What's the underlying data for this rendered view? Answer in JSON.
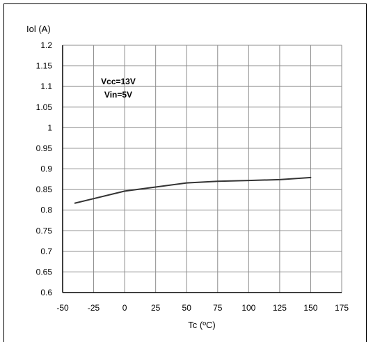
{
  "chart_data": {
    "type": "line",
    "ylabel": "Iol (A)",
    "xlabel": "Tc (ºC)",
    "xlim": [
      -50,
      175
    ],
    "ylim": [
      0.6,
      1.2
    ],
    "x_ticks": [
      "-50",
      "-25",
      "0",
      "25",
      "50",
      "75",
      "100",
      "125",
      "150",
      "175"
    ],
    "y_ticks": [
      "1.2",
      "1.15",
      "1.1",
      "1.05",
      "1",
      "0.95",
      "0.9",
      "0.85",
      "0.8",
      "0.75",
      "0.7",
      "0.65",
      "0.6"
    ],
    "grid": true,
    "annotations": [
      "Vcc=13V",
      "Vin=5V"
    ],
    "series": [
      {
        "x": [
          -40,
          0,
          50,
          75,
          100,
          125,
          150
        ],
        "y": [
          0.817,
          0.846,
          0.866,
          0.87,
          0.872,
          0.874,
          0.879
        ],
        "color": "#333333"
      }
    ]
  }
}
